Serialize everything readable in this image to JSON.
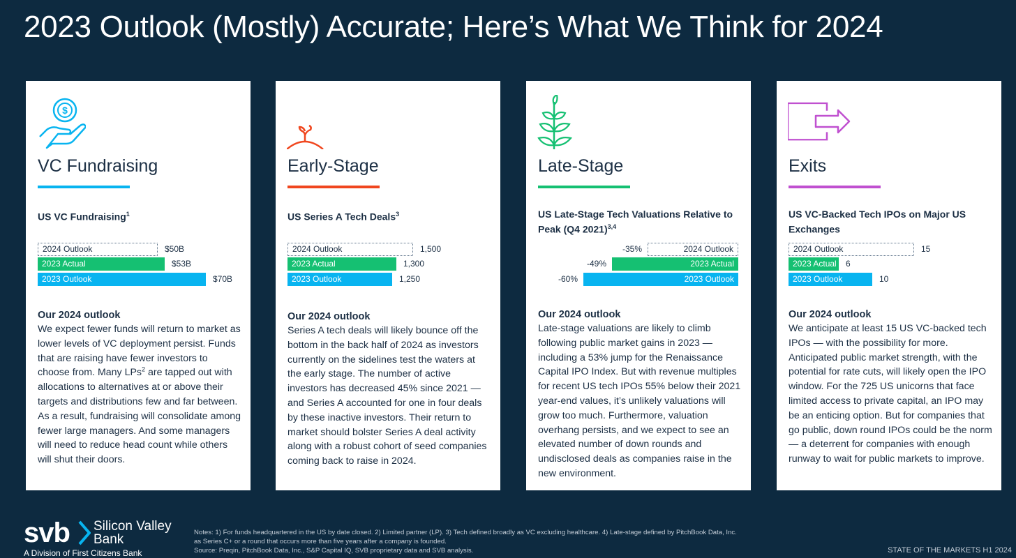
{
  "title": "2023 Outlook (Mostly) Accurate; Here’s What We Think for 2024",
  "colors": {
    "background": "#0d2a40",
    "green": "#15c072",
    "blue": "#08b4f0",
    "vc": "#08b4f0",
    "early": "#f0461e",
    "late": "#15c072",
    "exits": "#c050d0"
  },
  "cards": [
    {
      "category": "VC Fundraising",
      "icon": "hand-coin-icon",
      "subtitle": "US VC Fundraising",
      "subtitle_note": "1",
      "outlook_heading": "Our 2024 outlook",
      "outlook_text": "We expect fewer funds will return to market as lower levels of VC deployment persist. Funds that are raising have fewer investors to choose from. Many LPs² are tapped out with allocations to alternatives at or above their targets and distributions few and far between. As a result, fundraising will consolidate among fewer large managers. And some managers will need to reduce head count while others will shut their doors."
    },
    {
      "category": "Early-Stage",
      "icon": "sprout-icon",
      "subtitle": "US Series A Tech Deals",
      "subtitle_note": "3",
      "outlook_heading": "Our 2024 outlook",
      "outlook_text": "Series A tech deals will likely bounce off the bottom in the back half of 2024 as investors currently on the sidelines test the waters at the early stage. The number of active investors has decreased 45% since 2021 — and Series A accounted for one in four deals by these inactive investors. Their return to market should bolster Series A deal activity along with a robust cohort of seed companies coming back to raise in 2024."
    },
    {
      "category": "Late-Stage",
      "icon": "plant-icon",
      "subtitle": "US Late-Stage Tech Valuations Relative to Peak (Q4 2021)",
      "subtitle_note": "3,4",
      "outlook_heading": "Our 2024 outlook",
      "outlook_text": "Late-stage valuations are likely to climb following public market gains in 2023 — including a 53% jump for the Renaissance Capital IPO Index. But with revenue multiples for recent US tech IPOs 55% below their 2021 year-end values, it’s unlikely valuations will grow too much. Furthermore, valuation overhang persists, and we expect to see an elevated number of down rounds and undisclosed deals as companies raise in the new environment."
    },
    {
      "category": "Exits",
      "icon": "exit-arrow-icon",
      "subtitle": "US VC-Backed Tech IPOs on Major US Exchanges",
      "subtitle_note": "",
      "outlook_heading": "Our 2024 outlook",
      "outlook_text": "We anticipate at least 15 US VC-backed tech IPOs — with the possibility for more. Anticipated public market strength, with the potential for rate cuts, will likely open the IPO window. For the 725 US unicorns that face limited access to private capital, an IPO may be an enticing option. But for companies that go public, down round IPOs could be the norm — a deterrent for companies with enough runway to wait for public markets to improve."
    }
  ],
  "chart_data": [
    {
      "type": "bar",
      "orientation": "horizontal",
      "title": "US VC Fundraising",
      "categories": [
        "2024 Outlook",
        "2023 Actual",
        "2023 Outlook"
      ],
      "values": [
        50,
        53,
        70
      ],
      "value_labels": [
        "$50B",
        "$53B",
        "$70B"
      ],
      "unit": "$B",
      "xlim": [
        0,
        70
      ]
    },
    {
      "type": "bar",
      "orientation": "horizontal",
      "title": "US Series A Tech Deals",
      "categories": [
        "2024 Outlook",
        "2023 Actual",
        "2023 Outlook"
      ],
      "values": [
        1500,
        1300,
        1250
      ],
      "value_labels": [
        "1,500",
        "1,300",
        "1,250"
      ],
      "xlim": [
        0,
        1500
      ]
    },
    {
      "type": "bar",
      "orientation": "horizontal",
      "direction": "negative",
      "title": "US Late-Stage Tech Valuations Relative to Peak (Q4 2021)",
      "categories": [
        "2024 Outlook",
        "2023 Actual",
        "2023 Outlook"
      ],
      "values": [
        -35,
        -49,
        -60
      ],
      "value_labels": [
        "-35%",
        "-49%",
        "-60%"
      ],
      "unit": "%",
      "xlim": [
        -60,
        0
      ]
    },
    {
      "type": "bar",
      "orientation": "horizontal",
      "title": "US VC-Backed Tech IPOs on Major US Exchanges",
      "categories": [
        "2024 Outlook",
        "2023 Actual",
        "2023 Outlook"
      ],
      "values": [
        15,
        6,
        10
      ],
      "value_labels": [
        "15",
        "6",
        "10"
      ],
      "xlim": [
        0,
        15
      ]
    }
  ],
  "logo": {
    "mark": "svb",
    "name_line1": "Silicon Valley",
    "name_line2": "Bank",
    "division": "A Division of First Citizens Bank"
  },
  "notes": "Notes: 1) For funds headquartered in the US by date closed. 2) Limited partner (LP). 3) Tech defined broadly as VC excluding healthcare. 4) Late-stage defined by PitchBook Data, Inc. as Series C+ or a round that occurs more than five years after a company is founded.",
  "source": "Source: Preqin, PitchBook Data, Inc., S&P Capital IQ, SVB proprietary data and SVB analysis.",
  "footer": "STATE OF THE MARKETS H1 2024"
}
